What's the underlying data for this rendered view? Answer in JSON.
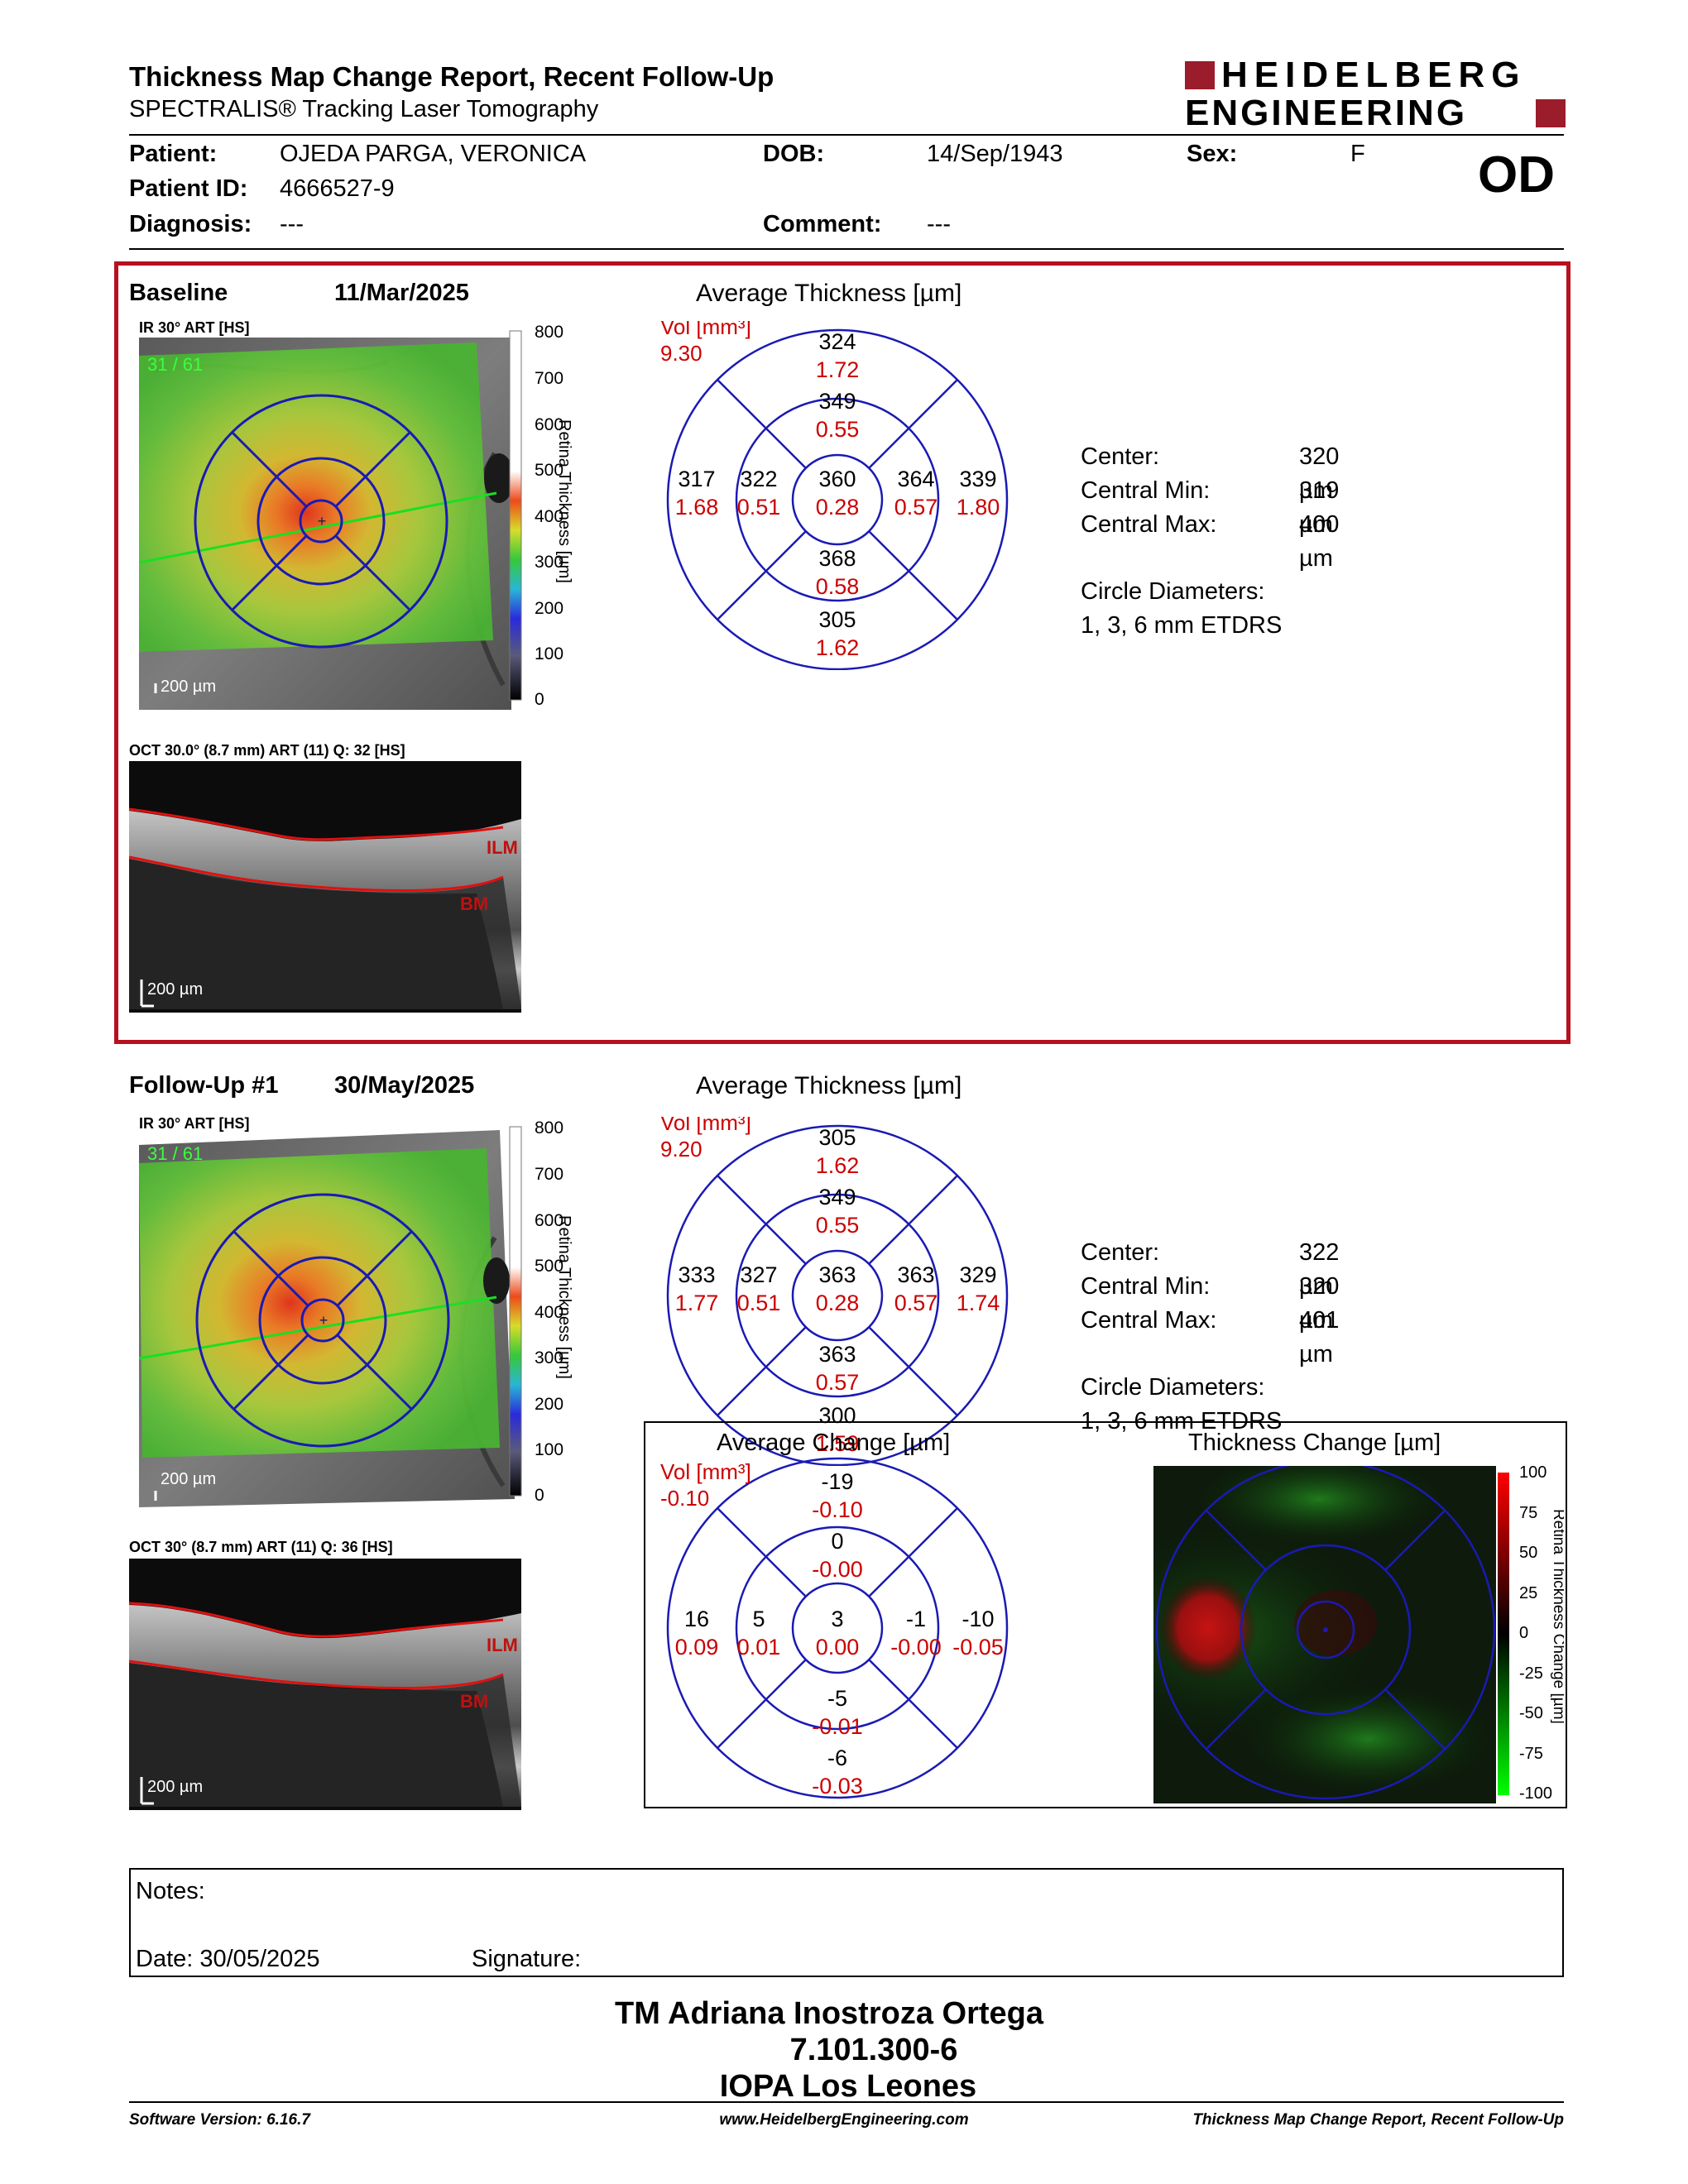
{
  "header": {
    "title": "Thickness Map Change Report, Recent Follow-Up",
    "subtitle": "SPECTRALIS® Tracking Laser Tomography",
    "logo_line1": "HEIDELBERG",
    "logo_line2": "ENGINEERING",
    "brand_color": "#9b1c2b"
  },
  "patient": {
    "patient_label": "Patient:",
    "patient_name": "OJEDA PARGA, VERONICA",
    "id_label": "Patient ID:",
    "id_value": "4666527-9",
    "diagnosis_label": "Diagnosis:",
    "diagnosis_value": "---",
    "dob_label": "DOB:",
    "dob_value": "14/Sep/1943",
    "comment_label": "Comment:",
    "comment_value": "---",
    "sex_label": "Sex:",
    "sex_value": "F",
    "eye": "OD"
  },
  "baseline": {
    "label": "Baseline",
    "date": "11/Mar/2025",
    "ir_label": "IR 30° ART [HS]",
    "ir_counter": "31 / 61",
    "scale_bar": "200 µm",
    "oct_label": "OCT 30.0° (8.7 mm) ART (11) Q: 32 [HS]",
    "oct_scale": "200 µm",
    "ilm": "ILM",
    "bm": "BM",
    "avg_title": "Average Thickness [µm]",
    "vol_label": "Vol [mm³]",
    "vol_value": "9.30",
    "sectors": {
      "outer_top": {
        "t": "324",
        "v": "1.72"
      },
      "inner_top": {
        "t": "349",
        "v": "0.55"
      },
      "outer_left": {
        "t": "317",
        "v": "1.68"
      },
      "inner_left": {
        "t": "322",
        "v": "0.51"
      },
      "center": {
        "t": "360",
        "v": "0.28"
      },
      "inner_right": {
        "t": "364",
        "v": "0.57"
      },
      "outer_right": {
        "t": "339",
        "v": "1.80"
      },
      "inner_bottom": {
        "t": "368",
        "v": "0.58"
      },
      "outer_bottom": {
        "t": "305",
        "v": "1.62"
      }
    },
    "stats": [
      {
        "label": "Center:",
        "value": "320 µm"
      },
      {
        "label": "Central Min:",
        "value": "319 µm"
      },
      {
        "label": "Central Max:",
        "value": "400 µm"
      }
    ],
    "circle_label": "Circle Diameters:",
    "circle_value": "1, 3, 6 mm ETDRS"
  },
  "followup": {
    "label": "Follow-Up #1",
    "date": "30/May/2025",
    "ir_label": "IR 30° ART [HS]",
    "ir_counter": "31 / 61",
    "scale_bar": "200 µm",
    "oct_label": "OCT 30° (8.7 mm) ART (11) Q: 36 [HS]",
    "oct_scale": "200 µm",
    "ilm": "ILM",
    "bm": "BM",
    "avg_title": "Average Thickness [µm]",
    "vol_label": "Vol [mm³]",
    "vol_value": "9.20",
    "sectors": {
      "outer_top": {
        "t": "305",
        "v": "1.62"
      },
      "inner_top": {
        "t": "349",
        "v": "0.55"
      },
      "outer_left": {
        "t": "333",
        "v": "1.77"
      },
      "inner_left": {
        "t": "327",
        "v": "0.51"
      },
      "center": {
        "t": "363",
        "v": "0.28"
      },
      "inner_right": {
        "t": "363",
        "v": "0.57"
      },
      "outer_right": {
        "t": "329",
        "v": "1.74"
      },
      "inner_bottom": {
        "t": "363",
        "v": "0.57"
      },
      "outer_bottom": {
        "t": "300",
        "v": "1.59"
      }
    },
    "stats": [
      {
        "label": "Center:",
        "value": "322 µm"
      },
      {
        "label": "Central Min:",
        "value": "320 µm"
      },
      {
        "label": "Central Max:",
        "value": "401 µm"
      }
    ],
    "circle_label": "Circle Diameters:",
    "circle_value": "1, 3, 6 mm ETDRS"
  },
  "change": {
    "avg_title": "Average Change [µm]",
    "vol_label": "Vol [mm³]",
    "vol_value": "-0.10",
    "sectors": {
      "outer_top": {
        "t": "-19",
        "v": "-0.10"
      },
      "inner_top": {
        "t": "0",
        "v": "-0.00"
      },
      "outer_left": {
        "t": "16",
        "v": "0.09"
      },
      "inner_left": {
        "t": "5",
        "v": "0.01"
      },
      "center": {
        "t": "3",
        "v": "0.00"
      },
      "inner_right": {
        "t": "-1",
        "v": "-0.00"
      },
      "outer_right": {
        "t": "-10",
        "v": "-0.05"
      },
      "inner_bottom": {
        "t": "-5",
        "v": "-0.01"
      },
      "outer_bottom": {
        "t": "-6",
        "v": "-0.03"
      }
    },
    "map_title": "Thickness Change [µm]",
    "map_axis_label": "Retina Thickness Change [µm]",
    "map_ticks": [
      "100",
      "75",
      "50",
      "25",
      "0",
      "-25",
      "-50",
      "-75",
      "-100"
    ]
  },
  "thickness_scale": {
    "axis_label": "Retina Thickness [µm]",
    "ticks": [
      "800",
      "700",
      "600",
      "500",
      "400",
      "300",
      "200",
      "100",
      "0"
    ]
  },
  "notes": {
    "notes_label": "Notes:",
    "date_label": "Date: 30/05/2025",
    "signature_label": "Signature:"
  },
  "signoff": {
    "line1": "TM Adriana Inostroza Ortega",
    "line2": "7.101.300-6",
    "line3": "IOPA Los Leones"
  },
  "footer": {
    "software": "Software Version: 6.16.7",
    "url": "www.HeidelbergEngineering.com",
    "report": "Thickness Map Change Report, Recent Follow-Up"
  }
}
